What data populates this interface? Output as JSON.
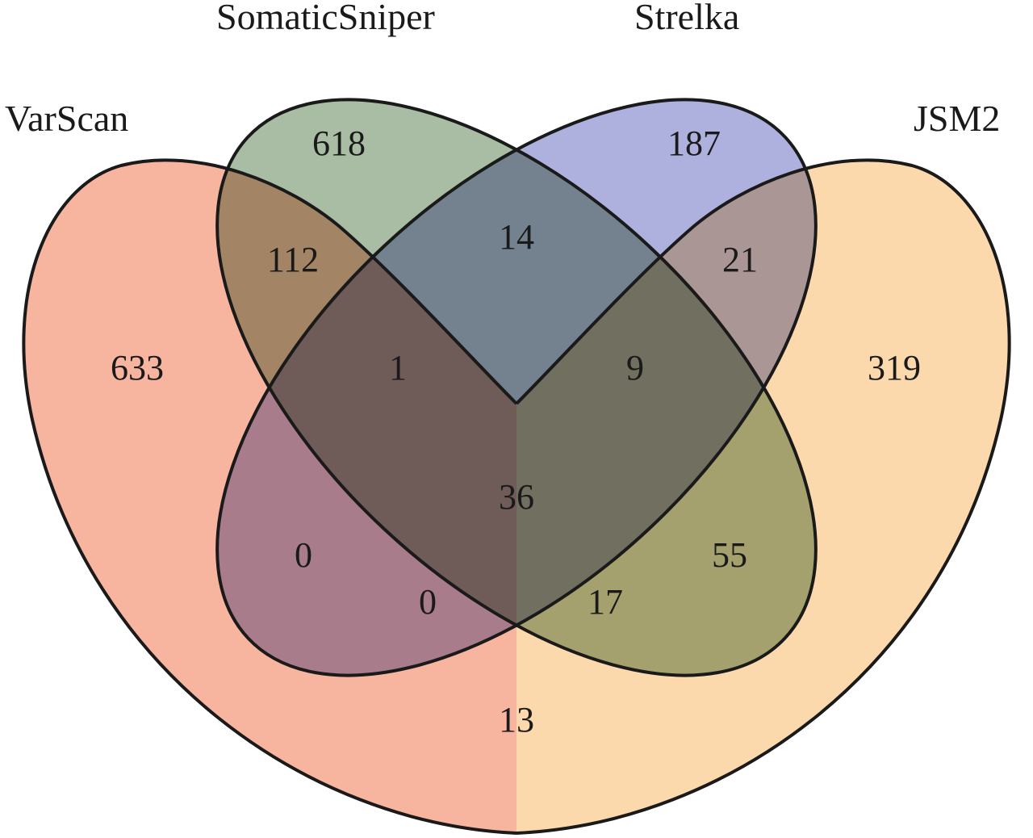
{
  "sets": [
    {
      "key": "varscan",
      "name": "VarScan",
      "color": "#f7b49f"
    },
    {
      "key": "somaticsniper",
      "name": "SomaticSniper",
      "color": "#a8bda3"
    },
    {
      "key": "strelka",
      "name": "Strelka",
      "color": "#aeb0de"
    },
    {
      "key": "jsm2",
      "name": "JSM2",
      "color": "#fbd9ac"
    }
  ],
  "regions": {
    "varscan_only": "633",
    "somaticsniper_only": "618",
    "strelka_only": "187",
    "jsm2_only": "319",
    "varscan_somaticsniper": "112",
    "somaticsniper_strelka": "14",
    "strelka_jsm2": "21",
    "varscan_somaticsniper_strelka": "1",
    "somaticsniper_strelka_jsm2": "9",
    "all_four": "36",
    "varscan_strelka": "0",
    "varscan_strelka_jsm2": "0",
    "varscan_somaticsniper_jsm2": "17",
    "somaticsniper_jsm2": "55",
    "varscan_jsm2": "13"
  }
}
